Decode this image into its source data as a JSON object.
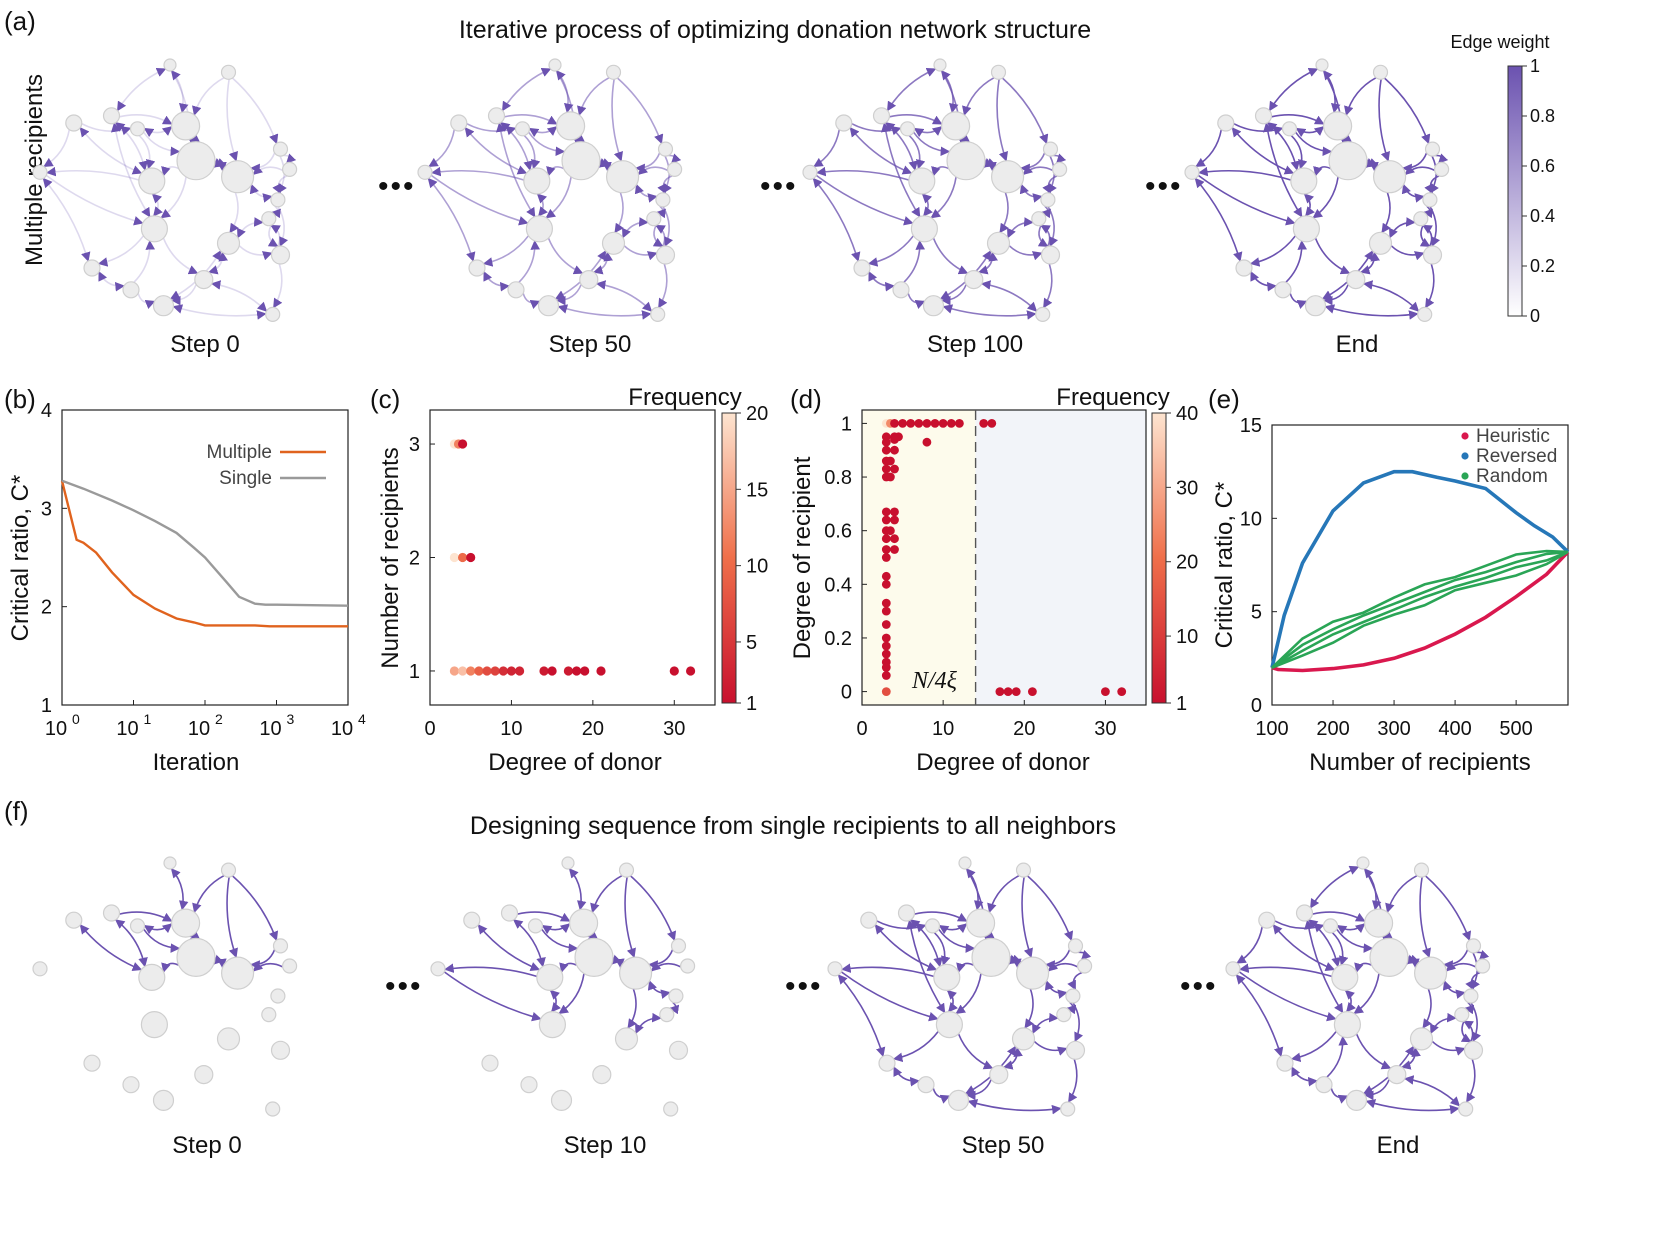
{
  "colors": {
    "edge": "#6b52b0",
    "multiple": "#e0631e",
    "single": "#9a9a9a",
    "heuristic": "#d9184e",
    "reversed": "#2677b8",
    "random": "#2aa556",
    "yellow_bg": "#fdfbec",
    "blue_bg": "#f2f4f9"
  },
  "panel_a": {
    "label": "(a)",
    "title": "Iterative process of optimizing donation network structure",
    "row_label": "Multiple recipients",
    "steps": [
      "Step 0",
      "Step 50",
      "Step 100",
      "End"
    ],
    "edge_opacity": [
      0.22,
      0.55,
      0.78,
      1.0
    ],
    "ellipsis": "•••",
    "colorbar": {
      "title": "Edge weight",
      "ticks": [
        "0",
        "0.2",
        "0.4",
        "0.6",
        "0.8",
        "1"
      ]
    }
  },
  "panel_f": {
    "label": "(f)",
    "title": "Designing sequence from single recipients to all neighbors",
    "steps": [
      "Step 0",
      "Step 10",
      "Step 50",
      "End"
    ],
    "edge_fraction": [
      0.3,
      0.45,
      0.85,
      1.0
    ],
    "ellipsis": "•••"
  },
  "panel_b": {
    "label": "(b)",
    "chart_data": {
      "type": "line",
      "xlabel": "Iteration",
      "ylabel": "Critical ratio, C*",
      "xscale": "log",
      "xlim": [
        1,
        10000
      ],
      "ylim": [
        1,
        4
      ],
      "xticks": [
        "10^0",
        "10^1",
        "10^2",
        "10^3",
        "10^4"
      ],
      "yticks": [
        "1",
        "2",
        "3",
        "4"
      ],
      "legend_position": "top-right",
      "series": [
        {
          "name": "Multiple",
          "x": [
            1,
            1.6,
            2,
            3,
            5,
            10,
            20,
            40,
            70,
            100,
            200,
            500,
            800,
            1000,
            10000
          ],
          "y": [
            3.28,
            2.68,
            2.65,
            2.55,
            2.35,
            2.12,
            1.98,
            1.88,
            1.84,
            1.81,
            1.81,
            1.81,
            1.8,
            1.8,
            1.8
          ]
        },
        {
          "name": "Single",
          "x": [
            1,
            2,
            5,
            10,
            20,
            40,
            70,
            100,
            200,
            300,
            500,
            700,
            1000,
            10000
          ],
          "y": [
            3.28,
            3.2,
            3.08,
            2.98,
            2.87,
            2.75,
            2.6,
            2.5,
            2.25,
            2.1,
            2.03,
            2.02,
            2.02,
            2.01
          ]
        }
      ]
    }
  },
  "panel_c": {
    "label": "(c)",
    "chart_data": {
      "type": "scatter",
      "xlabel": "Degree of donor",
      "ylabel": "Number of recipients",
      "xlim": [
        0,
        35
      ],
      "ylim": [
        0.7,
        3.3
      ],
      "xticks": [
        "0",
        "10",
        "20",
        "30"
      ],
      "yticks": [
        "1",
        "2",
        "3"
      ],
      "colorbar": {
        "title": "Frequency",
        "ticks": [
          "1",
          "5",
          "10",
          "15",
          "20"
        ],
        "max": 20
      },
      "points": [
        {
          "x": 3,
          "y": 3,
          "f": 20
        },
        {
          "x": 3.5,
          "y": 3,
          "f": 12
        },
        {
          "x": 4,
          "y": 3,
          "f": 1
        },
        {
          "x": 3,
          "y": 2,
          "f": 20
        },
        {
          "x": 4,
          "y": 2,
          "f": 10
        },
        {
          "x": 5,
          "y": 2,
          "f": 1
        },
        {
          "x": 3,
          "y": 1,
          "f": 15
        },
        {
          "x": 4,
          "y": 1,
          "f": 17
        },
        {
          "x": 5,
          "y": 1,
          "f": 12
        },
        {
          "x": 6,
          "y": 1,
          "f": 9
        },
        {
          "x": 7,
          "y": 1,
          "f": 7
        },
        {
          "x": 8,
          "y": 1,
          "f": 6
        },
        {
          "x": 9,
          "y": 1,
          "f": 4
        },
        {
          "x": 10,
          "y": 1,
          "f": 3
        },
        {
          "x": 11,
          "y": 1,
          "f": 3
        },
        {
          "x": 14,
          "y": 1,
          "f": 2
        },
        {
          "x": 15,
          "y": 1,
          "f": 1
        },
        {
          "x": 17,
          "y": 1,
          "f": 2
        },
        {
          "x": 18,
          "y": 1,
          "f": 1
        },
        {
          "x": 19,
          "y": 1,
          "f": 1
        },
        {
          "x": 21,
          "y": 1,
          "f": 1
        },
        {
          "x": 30,
          "y": 1,
          "f": 1
        },
        {
          "x": 32,
          "y": 1,
          "f": 1
        }
      ]
    }
  },
  "panel_d": {
    "label": "(d)",
    "annotation": "N/4ξ",
    "chart_data": {
      "type": "scatter",
      "xlabel": "Degree of donor",
      "ylabel": "Degree of recipient",
      "xlim": [
        0,
        35
      ],
      "ylim": [
        -0.05,
        1.05
      ],
      "xticks": [
        "0",
        "10",
        "20",
        "30"
      ],
      "yticks": [
        "0",
        "0.2",
        "0.4",
        "0.6",
        "0.8",
        "1"
      ],
      "threshold_x": 14,
      "colorbar": {
        "title": "Frequency",
        "ticks": [
          "1",
          "10",
          "20",
          "30",
          "40"
        ],
        "max": 40
      },
      "points": [
        {
          "x": 3,
          "y": 1,
          "f": 40
        },
        {
          "x": 3.5,
          "y": 1,
          "f": 25
        },
        {
          "x": 4,
          "y": 1,
          "f": 1
        },
        {
          "x": 5,
          "y": 1,
          "f": 1
        },
        {
          "x": 6,
          "y": 1,
          "f": 1
        },
        {
          "x": 7,
          "y": 1,
          "f": 1
        },
        {
          "x": 8,
          "y": 1,
          "f": 1
        },
        {
          "x": 9,
          "y": 1,
          "f": 1
        },
        {
          "x": 10,
          "y": 1,
          "f": 1
        },
        {
          "x": 11,
          "y": 1,
          "f": 1
        },
        {
          "x": 12,
          "y": 1,
          "f": 1
        },
        {
          "x": 15,
          "y": 1,
          "f": 1
        },
        {
          "x": 16,
          "y": 1,
          "f": 1
        },
        {
          "x": 3,
          "y": 0.95,
          "f": 1
        },
        {
          "x": 4,
          "y": 0.95,
          "f": 1
        },
        {
          "x": 4.5,
          "y": 0.95,
          "f": 1
        },
        {
          "x": 3,
          "y": 0.93,
          "f": 1
        },
        {
          "x": 4,
          "y": 0.94,
          "f": 1
        },
        {
          "x": 8,
          "y": 0.93,
          "f": 1
        },
        {
          "x": 3,
          "y": 0.9,
          "f": 1
        },
        {
          "x": 4,
          "y": 0.9,
          "f": 1
        },
        {
          "x": 3,
          "y": 0.86,
          "f": 1
        },
        {
          "x": 3.5,
          "y": 0.86,
          "f": 1
        },
        {
          "x": 3,
          "y": 0.83,
          "f": 1
        },
        {
          "x": 4,
          "y": 0.83,
          "f": 1
        },
        {
          "x": 3,
          "y": 0.8,
          "f": 1
        },
        {
          "x": 3.5,
          "y": 0.8,
          "f": 1
        },
        {
          "x": 3,
          "y": 0.67,
          "f": 1
        },
        {
          "x": 4,
          "y": 0.67,
          "f": 1
        },
        {
          "x": 3,
          "y": 0.64,
          "f": 1
        },
        {
          "x": 4,
          "y": 0.64,
          "f": 1
        },
        {
          "x": 3,
          "y": 0.6,
          "f": 1
        },
        {
          "x": 3.5,
          "y": 0.6,
          "f": 1
        },
        {
          "x": 3,
          "y": 0.57,
          "f": 1
        },
        {
          "x": 4,
          "y": 0.57,
          "f": 1
        },
        {
          "x": 3,
          "y": 0.53,
          "f": 1
        },
        {
          "x": 4,
          "y": 0.53,
          "f": 1
        },
        {
          "x": 3,
          "y": 0.5,
          "f": 1
        },
        {
          "x": 3,
          "y": 0.43,
          "f": 1
        },
        {
          "x": 3,
          "y": 0.4,
          "f": 1
        },
        {
          "x": 3,
          "y": 0.33,
          "f": 1
        },
        {
          "x": 3,
          "y": 0.3,
          "f": 1
        },
        {
          "x": 3,
          "y": 0.25,
          "f": 1
        },
        {
          "x": 3,
          "y": 0.2,
          "f": 1
        },
        {
          "x": 3,
          "y": 0.17,
          "f": 1
        },
        {
          "x": 3,
          "y": 0.14,
          "f": 1
        },
        {
          "x": 3,
          "y": 0.11,
          "f": 1
        },
        {
          "x": 3,
          "y": 0.09,
          "f": 1
        },
        {
          "x": 3,
          "y": 0.06,
          "f": 1
        },
        {
          "x": 3,
          "y": 0,
          "f": 14
        },
        {
          "x": 17,
          "y": 0,
          "f": 1
        },
        {
          "x": 18,
          "y": 0,
          "f": 1
        },
        {
          "x": 19,
          "y": 0,
          "f": 1
        },
        {
          "x": 21,
          "y": 0,
          "f": 1
        },
        {
          "x": 30,
          "y": 0,
          "f": 1
        },
        {
          "x": 32,
          "y": 0,
          "f": 1
        }
      ]
    }
  },
  "panel_e": {
    "label": "(e)",
    "chart_data": {
      "type": "line",
      "xlabel": "Number of recipients",
      "ylabel": "Critical ratio, C*",
      "xlim": [
        100,
        585
      ],
      "ylim": [
        0,
        15
      ],
      "xticks": [
        "100",
        "200",
        "300",
        "400",
        "500"
      ],
      "yticks": [
        "0",
        "5",
        "10",
        "15"
      ],
      "legend_position": "top-right",
      "series": [
        {
          "name": "Heuristic",
          "x": [
            100,
            110,
            150,
            200,
            250,
            300,
            350,
            400,
            450,
            500,
            550,
            585
          ],
          "y": [
            2.0,
            1.9,
            1.85,
            1.95,
            2.15,
            2.5,
            3.05,
            3.8,
            4.7,
            5.8,
            7.0,
            8.2
          ]
        },
        {
          "name": "Reversed",
          "x": [
            100,
            120,
            150,
            200,
            250,
            300,
            330,
            370,
            400,
            450,
            500,
            530,
            560,
            585
          ],
          "y": [
            2.0,
            4.8,
            7.6,
            10.4,
            11.9,
            12.5,
            12.5,
            12.2,
            12.0,
            11.6,
            10.3,
            9.6,
            9.0,
            8.2
          ]
        },
        {
          "name": "Random",
          "x": [
            100,
            150,
            200,
            250,
            300,
            350,
            400,
            450,
            500,
            550,
            585
          ],
          "y": [
            2.0,
            3.1,
            3.9,
            4.6,
            5.3,
            5.9,
            6.5,
            7.0,
            7.5,
            7.9,
            8.2
          ]
        }
      ]
    }
  }
}
